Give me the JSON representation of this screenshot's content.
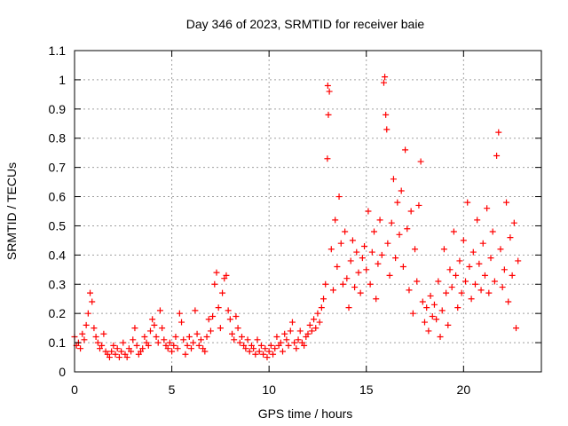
{
  "chart_data": {
    "type": "scatter",
    "title": "Day 346 of 2023, SRMTID for receiver baie",
    "xlabel": "GPS time / hours",
    "ylabel": "SRMTID / TECUs",
    "xlim": [
      0,
      24
    ],
    "ylim": [
      0,
      1.1
    ],
    "xticks": [
      0,
      5,
      10,
      15,
      20
    ],
    "yticks": [
      0,
      0.1,
      0.2,
      0.3,
      0.4,
      0.5,
      0.6,
      0.7,
      0.8,
      0.9,
      1,
      1.1
    ],
    "xtick_labels": [
      "0",
      "5",
      "10",
      "15",
      "20"
    ],
    "ytick_labels": [
      "0",
      "0.1",
      "0.2",
      "0.3",
      "0.4",
      "0.5",
      "0.6",
      "0.7",
      "0.8",
      "0.9",
      "1",
      "1.1"
    ],
    "grid": true,
    "marker": "plus",
    "color": "#ff0000",
    "series": [
      {
        "name": "SRMTID",
        "points": [
          [
            0.0,
            0.12
          ],
          [
            0.1,
            0.09
          ],
          [
            0.2,
            0.1
          ],
          [
            0.3,
            0.08
          ],
          [
            0.4,
            0.13
          ],
          [
            0.5,
            0.11
          ],
          [
            0.6,
            0.16
          ],
          [
            0.7,
            0.2
          ],
          [
            0.8,
            0.27
          ],
          [
            0.9,
            0.24
          ],
          [
            1.0,
            0.15
          ],
          [
            1.1,
            0.12
          ],
          [
            1.2,
            0.1
          ],
          [
            1.3,
            0.08
          ],
          [
            1.4,
            0.09
          ],
          [
            1.5,
            0.13
          ],
          [
            1.6,
            0.07
          ],
          [
            1.7,
            0.06
          ],
          [
            1.8,
            0.05
          ],
          [
            1.9,
            0.07
          ],
          [
            2.0,
            0.09
          ],
          [
            2.1,
            0.06
          ],
          [
            2.2,
            0.08
          ],
          [
            2.3,
            0.05
          ],
          [
            2.4,
            0.07
          ],
          [
            2.5,
            0.1
          ],
          [
            2.6,
            0.06
          ],
          [
            2.7,
            0.05
          ],
          [
            2.8,
            0.08
          ],
          [
            2.9,
            0.07
          ],
          [
            3.0,
            0.11
          ],
          [
            3.1,
            0.15
          ],
          [
            3.2,
            0.09
          ],
          [
            3.3,
            0.06
          ],
          [
            3.4,
            0.07
          ],
          [
            3.5,
            0.08
          ],
          [
            3.6,
            0.12
          ],
          [
            3.7,
            0.1
          ],
          [
            3.8,
            0.09
          ],
          [
            3.9,
            0.14
          ],
          [
            4.0,
            0.18
          ],
          [
            4.1,
            0.16
          ],
          [
            4.2,
            0.12
          ],
          [
            4.3,
            0.1
          ],
          [
            4.4,
            0.21
          ],
          [
            4.5,
            0.15
          ],
          [
            4.6,
            0.11
          ],
          [
            4.7,
            0.09
          ],
          [
            4.8,
            0.08
          ],
          [
            4.9,
            0.1
          ],
          [
            5.0,
            0.07
          ],
          [
            5.1,
            0.09
          ],
          [
            5.2,
            0.12
          ],
          [
            5.3,
            0.08
          ],
          [
            5.4,
            0.2
          ],
          [
            5.5,
            0.17
          ],
          [
            5.6,
            0.11
          ],
          [
            5.7,
            0.06
          ],
          [
            5.8,
            0.09
          ],
          [
            5.9,
            0.12
          ],
          [
            6.0,
            0.08
          ],
          [
            6.1,
            0.1
          ],
          [
            6.2,
            0.21
          ],
          [
            6.3,
            0.13
          ],
          [
            6.4,
            0.09
          ],
          [
            6.5,
            0.11
          ],
          [
            6.6,
            0.08
          ],
          [
            6.7,
            0.07
          ],
          [
            6.8,
            0.12
          ],
          [
            6.9,
            0.18
          ],
          [
            7.0,
            0.14
          ],
          [
            7.1,
            0.19
          ],
          [
            7.2,
            0.3
          ],
          [
            7.3,
            0.34
          ],
          [
            7.4,
            0.22
          ],
          [
            7.5,
            0.15
          ],
          [
            7.6,
            0.27
          ],
          [
            7.7,
            0.32
          ],
          [
            7.8,
            0.33
          ],
          [
            7.9,
            0.21
          ],
          [
            8.0,
            0.18
          ],
          [
            8.1,
            0.13
          ],
          [
            8.2,
            0.11
          ],
          [
            8.3,
            0.19
          ],
          [
            8.4,
            0.15
          ],
          [
            8.5,
            0.1
          ],
          [
            8.6,
            0.12
          ],
          [
            8.7,
            0.09
          ],
          [
            8.8,
            0.08
          ],
          [
            8.9,
            0.11
          ],
          [
            9.0,
            0.07
          ],
          [
            9.1,
            0.09
          ],
          [
            9.2,
            0.08
          ],
          [
            9.3,
            0.06
          ],
          [
            9.4,
            0.11
          ],
          [
            9.5,
            0.07
          ],
          [
            9.6,
            0.09
          ],
          [
            9.7,
            0.06
          ],
          [
            9.8,
            0.08
          ],
          [
            9.9,
            0.05
          ],
          [
            10.0,
            0.07
          ],
          [
            10.1,
            0.09
          ],
          [
            10.2,
            0.06
          ],
          [
            10.3,
            0.08
          ],
          [
            10.4,
            0.12
          ],
          [
            10.5,
            0.09
          ],
          [
            10.6,
            0.1
          ],
          [
            10.7,
            0.07
          ],
          [
            10.8,
            0.13
          ],
          [
            10.9,
            0.11
          ],
          [
            11.0,
            0.09
          ],
          [
            11.1,
            0.14
          ],
          [
            11.2,
            0.17
          ],
          [
            11.3,
            0.1
          ],
          [
            11.4,
            0.08
          ],
          [
            11.5,
            0.11
          ],
          [
            11.6,
            0.14
          ],
          [
            11.7,
            0.1
          ],
          [
            11.8,
            0.09
          ],
          [
            11.9,
            0.12
          ],
          [
            12.0,
            0.13
          ],
          [
            12.1,
            0.16
          ],
          [
            12.2,
            0.14
          ],
          [
            12.3,
            0.18
          ],
          [
            12.4,
            0.15
          ],
          [
            12.5,
            0.2
          ],
          [
            12.6,
            0.17
          ],
          [
            12.7,
            0.22
          ],
          [
            12.8,
            0.25
          ],
          [
            12.9,
            0.3
          ],
          [
            13.0,
            0.73
          ],
          [
            13.02,
            0.98
          ],
          [
            13.05,
            0.88
          ],
          [
            13.1,
            0.96
          ],
          [
            13.2,
            0.42
          ],
          [
            13.3,
            0.28
          ],
          [
            13.4,
            0.52
          ],
          [
            13.5,
            0.36
          ],
          [
            13.6,
            0.6
          ],
          [
            13.7,
            0.44
          ],
          [
            13.8,
            0.3
          ],
          [
            13.9,
            0.48
          ],
          [
            14.0,
            0.32
          ],
          [
            14.1,
            0.22
          ],
          [
            14.2,
            0.38
          ],
          [
            14.3,
            0.45
          ],
          [
            14.4,
            0.29
          ],
          [
            14.5,
            0.41
          ],
          [
            14.6,
            0.34
          ],
          [
            14.7,
            0.27
          ],
          [
            14.8,
            0.39
          ],
          [
            14.9,
            0.43
          ],
          [
            15.0,
            0.35
          ],
          [
            15.1,
            0.55
          ],
          [
            15.2,
            0.3
          ],
          [
            15.3,
            0.41
          ],
          [
            15.4,
            0.48
          ],
          [
            15.5,
            0.25
          ],
          [
            15.6,
            0.37
          ],
          [
            15.7,
            0.52
          ],
          [
            15.8,
            0.4
          ],
          [
            15.9,
            0.99
          ],
          [
            15.95,
            1.01
          ],
          [
            16.0,
            0.88
          ],
          [
            16.05,
            0.83
          ],
          [
            16.1,
            0.44
          ],
          [
            16.2,
            0.33
          ],
          [
            16.3,
            0.51
          ],
          [
            16.4,
            0.66
          ],
          [
            16.5,
            0.39
          ],
          [
            16.6,
            0.58
          ],
          [
            16.7,
            0.47
          ],
          [
            16.8,
            0.62
          ],
          [
            16.9,
            0.36
          ],
          [
            17.0,
            0.76
          ],
          [
            17.1,
            0.49
          ],
          [
            17.2,
            0.28
          ],
          [
            17.3,
            0.55
          ],
          [
            17.4,
            0.2
          ],
          [
            17.5,
            0.42
          ],
          [
            17.6,
            0.31
          ],
          [
            17.7,
            0.57
          ],
          [
            17.8,
            0.72
          ],
          [
            17.9,
            0.24
          ],
          [
            18.0,
            0.17
          ],
          [
            18.1,
            0.22
          ],
          [
            18.2,
            0.14
          ],
          [
            18.3,
            0.26
          ],
          [
            18.4,
            0.19
          ],
          [
            18.5,
            0.23
          ],
          [
            18.6,
            0.18
          ],
          [
            18.7,
            0.31
          ],
          [
            18.8,
            0.12
          ],
          [
            18.9,
            0.21
          ],
          [
            19.0,
            0.42
          ],
          [
            19.1,
            0.27
          ],
          [
            19.2,
            0.16
          ],
          [
            19.3,
            0.35
          ],
          [
            19.4,
            0.29
          ],
          [
            19.5,
            0.48
          ],
          [
            19.6,
            0.33
          ],
          [
            19.7,
            0.22
          ],
          [
            19.8,
            0.38
          ],
          [
            19.9,
            0.27
          ],
          [
            20.0,
            0.45
          ],
          [
            20.1,
            0.31
          ],
          [
            20.2,
            0.58
          ],
          [
            20.3,
            0.36
          ],
          [
            20.4,
            0.25
          ],
          [
            20.5,
            0.41
          ],
          [
            20.6,
            0.3
          ],
          [
            20.7,
            0.52
          ],
          [
            20.8,
            0.37
          ],
          [
            20.9,
            0.28
          ],
          [
            21.0,
            0.44
          ],
          [
            21.1,
            0.33
          ],
          [
            21.2,
            0.56
          ],
          [
            21.3,
            0.27
          ],
          [
            21.4,
            0.39
          ],
          [
            21.5,
            0.48
          ],
          [
            21.6,
            0.31
          ],
          [
            21.7,
            0.74
          ],
          [
            21.8,
            0.82
          ],
          [
            21.9,
            0.42
          ],
          [
            22.0,
            0.29
          ],
          [
            22.1,
            0.35
          ],
          [
            22.2,
            0.58
          ],
          [
            22.3,
            0.24
          ],
          [
            22.4,
            0.46
          ],
          [
            22.5,
            0.33
          ],
          [
            22.6,
            0.51
          ],
          [
            22.7,
            0.15
          ],
          [
            22.8,
            0.38
          ]
        ]
      }
    ]
  }
}
